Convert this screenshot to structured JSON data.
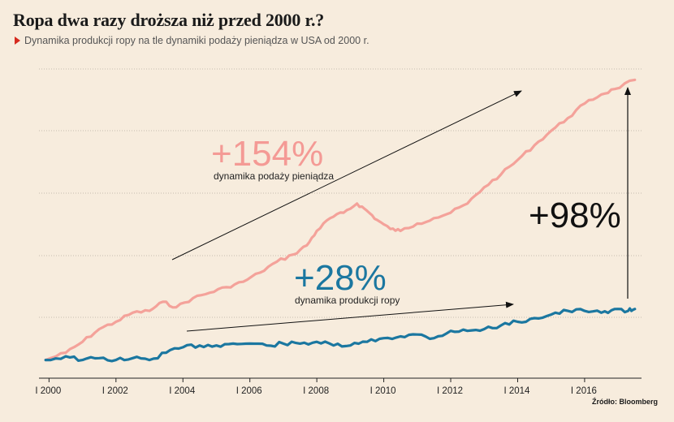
{
  "title": "Ropa dwa razy droższa niż przed 2000 r.?",
  "subtitle": "Dynamika produkcji ropy na tle dynamiki podaży pieniądza w USA od 2000 r.",
  "source": "Źródło: Bloomberg",
  "colors": {
    "money": "#f4a29a",
    "oil": "#1b77a0",
    "background": "#f7ecdd",
    "grid": "#b5aca0"
  },
  "chart_data": {
    "type": "line",
    "x_tick_labels": [
      "I 2000",
      "I 2002",
      "I 2004",
      "I 2006",
      "I 2008",
      "I 2010",
      "I 2012",
      "I 2014",
      "I 2016"
    ],
    "grid": true,
    "annotations": [
      {
        "text": "+154%",
        "sub": "dynamika podaży pieniądza",
        "color": "#f49a95"
      },
      {
        "text": "+28%",
        "sub": "dynamika produkcji ropy",
        "color": "#1b77a0"
      },
      {
        "text": "+98%",
        "sub": "",
        "color": "#111111"
      }
    ],
    "series": [
      {
        "key": "money",
        "x": [
          1999.9,
          2000.5,
          2001.0,
          2001.5,
          2002.0,
          2002.5,
          2003.0,
          2003.4,
          2003.8,
          2004.3,
          2004.8,
          2005.3,
          2005.8,
          2006.3,
          2006.8,
          2007.3,
          2007.7,
          2008.0,
          2008.4,
          2008.8,
          2009.2,
          2009.5,
          2009.8,
          2010.2,
          2010.5,
          2011.0,
          2011.5,
          2012.0,
          2012.5,
          2013.0,
          2013.5,
          2014.0,
          2014.5,
          2015.0,
          2015.5,
          2016.0,
          2016.5,
          2016.9,
          2017.5
        ],
        "values": [
          100,
          104,
          110,
          117,
          121,
          126,
          127,
          132,
          129,
          134,
          137,
          140,
          143,
          148,
          154,
          158,
          163,
          171,
          178,
          181,
          186,
          182,
          177,
          172,
          171,
          175,
          178,
          181,
          186,
          195,
          202,
          210,
          218,
          226,
          233,
          241,
          246,
          249,
          254
        ]
      },
      {
        "key": "oil",
        "x": [
          1999.9,
          2000.5,
          2001.0,
          2001.5,
          2002.0,
          2002.5,
          2003.0,
          2003.5,
          2004.0,
          2004.5,
          2005.0,
          2005.5,
          2006.0,
          2006.5,
          2007.0,
          2007.5,
          2008.0,
          2008.5,
          2009.0,
          2009.5,
          2010.0,
          2010.5,
          2011.0,
          2011.5,
          2012.0,
          2012.5,
          2013.0,
          2013.5,
          2014.0,
          2014.5,
          2015.0,
          2015.5,
          2016.0,
          2016.5,
          2016.9,
          2017.3,
          2017.5
        ],
        "values": [
          100,
          102,
          100,
          101,
          100,
          101,
          100,
          104,
          107,
          108,
          108,
          109,
          109,
          108,
          109,
          109,
          110,
          108,
          108,
          110,
          112,
          113,
          114,
          112,
          116,
          116,
          117,
          119,
          121,
          123,
          125,
          127,
          127,
          126,
          128,
          127,
          128
        ]
      }
    ]
  }
}
